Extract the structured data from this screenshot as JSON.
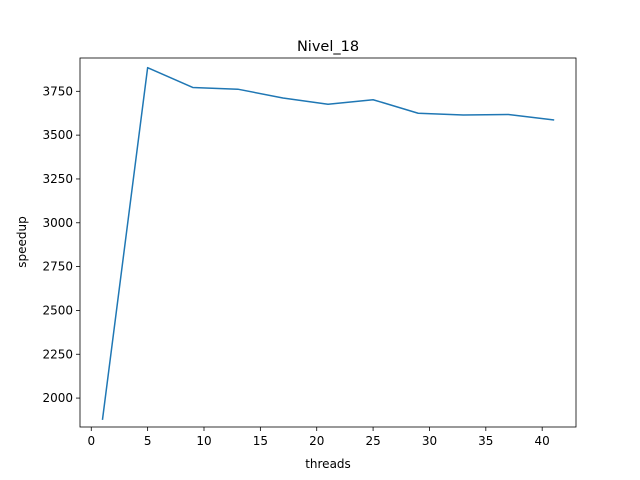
{
  "chart_data": {
    "type": "line",
    "title": "Nivel_18",
    "xlabel": "threads",
    "ylabel": "speedup",
    "xlim": [
      -1,
      43
    ],
    "ylim": [
      1835,
      3940
    ],
    "xticks": [
      0,
      5,
      10,
      15,
      20,
      25,
      30,
      35,
      40
    ],
    "yticks": [
      2000,
      2250,
      2500,
      2750,
      3000,
      3250,
      3500,
      3750
    ],
    "grid": false,
    "legend": "none",
    "series": [
      {
        "color": "#1f77b4",
        "x": [
          1,
          5,
          9,
          13,
          17,
          21,
          25,
          29,
          33,
          37,
          41
        ],
        "y": [
          1880,
          3885,
          3772,
          3762,
          3712,
          3676,
          3702,
          3625,
          3615,
          3618,
          3587
        ]
      }
    ]
  }
}
